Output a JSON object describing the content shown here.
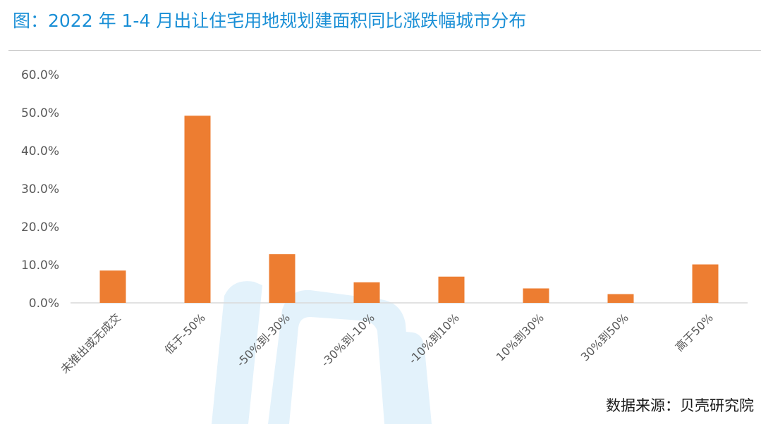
{
  "title": "图：2022 年 1-4 月出让住宅用地规划建面积同比涨跌幅城市分布",
  "source": "数据来源：贝壳研究院",
  "colors": {
    "bar": "#ED7D31",
    "title": "#1A8FD6",
    "axis": "#D9D9D9",
    "tick_text": "#595959"
  },
  "chart_data": {
    "type": "bar",
    "categories": [
      "未推出或无成交",
      "低于-50%",
      "-50%到-30%",
      "-30%到-10%",
      "-10%到10%",
      "10%到30%",
      "30%到50%",
      "高于50%"
    ],
    "values": [
      8.5,
      49.2,
      12.8,
      5.4,
      6.9,
      3.8,
      2.3,
      10.1
    ],
    "value_unit": "%",
    "ylim": [
      0,
      60
    ],
    "yticks": [
      "0.0%",
      "10.0%",
      "20.0%",
      "30.0%",
      "40.0%",
      "50.0%",
      "60.0%"
    ],
    "grid": false,
    "legend": "none"
  }
}
